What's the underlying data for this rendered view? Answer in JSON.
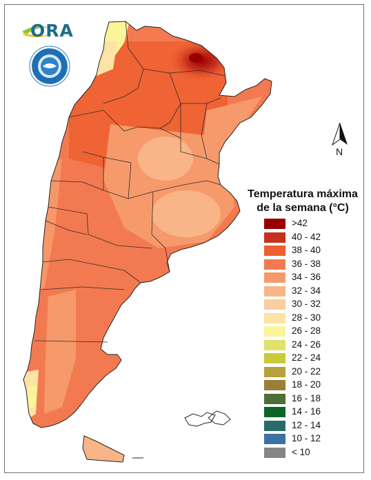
{
  "logo": {
    "text": "ORA"
  },
  "compass": {
    "label": "N"
  },
  "legend": {
    "title_line1": "Temperatura máxima",
    "title_line2": "de la semana (°C)",
    "items": [
      {
        "label": ">42",
        "color": "#980000"
      },
      {
        "label": "40 - 42",
        "color": "#c8301e"
      },
      {
        "label": "38 - 40",
        "color": "#ed5f2f"
      },
      {
        "label": "36 - 38",
        "color": "#f37a50"
      },
      {
        "label": "34 - 36",
        "color": "#f69a6b"
      },
      {
        "label": "32 - 34",
        "color": "#f9b587"
      },
      {
        "label": "30 - 32",
        "color": "#fbcc9f"
      },
      {
        "label": "28 - 30",
        "color": "#fde3a4"
      },
      {
        "label": "26 - 28",
        "color": "#fbf59a"
      },
      {
        "label": "24 - 26",
        "color": "#e1e16b"
      },
      {
        "label": "22 - 24",
        "color": "#c9cb3c"
      },
      {
        "label": "20 - 22",
        "color": "#b6a13c"
      },
      {
        "label": "18 - 20",
        "color": "#9a7e3a"
      },
      {
        "label": "16 - 18",
        "color": "#4d6e35"
      },
      {
        "label": "14 - 16",
        "color": "#0d6429"
      },
      {
        "label": "12 - 14",
        "color": "#2a6a69"
      },
      {
        "label": "10 - 12",
        "color": "#3a72a3"
      },
      {
        "label": "< 10",
        "color": "#858585"
      }
    ]
  }
}
